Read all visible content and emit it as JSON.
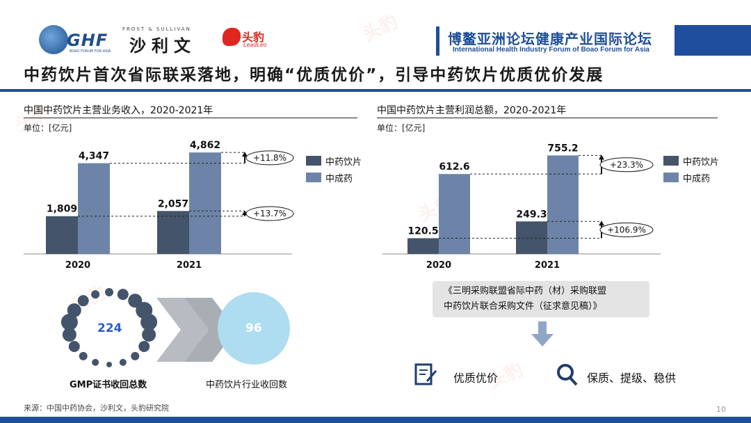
{
  "header": {
    "ghf_logo_text": "GHF",
    "ghf_logo_sub": "BOAO FORUM FOR ASIA",
    "frost_top": "FROST & SULLIVAN",
    "frost_cn": "沙利文",
    "leopard_cn": "头豹",
    "leopard_en": "LeadLeo",
    "forum_cn": "博鳌亚洲论坛健康产业国际论坛",
    "forum_en": "International Health Industry Forum of Boao Forum for Asia",
    "title": "中药饮片首次省际联采落地，明确“优质优价”，引导中药饮片优质优价发展"
  },
  "colors": {
    "dark_series": "#44546a",
    "light_series": "#6d84a8",
    "brand_blue": "#1f4e9c",
    "circle_blue": "#aedcf0"
  },
  "chart_data": [
    {
      "type": "bar",
      "title": "中国中药饮片主营业务收入，2020-2021年",
      "unit": "单位：[亿元]",
      "categories": [
        "2020",
        "2021"
      ],
      "series": [
        {
          "name": "中药饮片",
          "values": [
            1809,
            2057
          ],
          "labels": [
            "1,809",
            "2,057"
          ]
        },
        {
          "name": "中成药",
          "values": [
            4347,
            4862
          ],
          "labels": [
            "4,347",
            "4,862"
          ]
        }
      ],
      "ylim": [
        0,
        5000
      ],
      "annotations": [
        {
          "series": "中成药",
          "text": "+11.8%"
        },
        {
          "series": "中药饮片",
          "text": "+13.7%"
        }
      ],
      "legend": "right"
    },
    {
      "type": "bar",
      "title": "中国中药饮片主营利润总额，2020-2021年",
      "unit": "单位：[亿元]",
      "categories": [
        "2020",
        "2021"
      ],
      "series": [
        {
          "name": "中药饮片",
          "values": [
            120.5,
            249.3
          ],
          "labels": [
            "120.5",
            "249.3"
          ]
        },
        {
          "name": "中成药",
          "values": [
            612.6,
            755.2
          ],
          "labels": [
            "612.6",
            "755.2"
          ]
        }
      ],
      "ylim": [
        0,
        800
      ],
      "annotations": [
        {
          "series": "中成药",
          "text": "+23.3%"
        },
        {
          "series": "中药饮片",
          "text": "+106.9%"
        }
      ],
      "legend": "right"
    }
  ],
  "bottom": {
    "gmp_count": "224",
    "gmp_caption": "GMP证书收回总数",
    "industry_count": "96",
    "industry_caption": "中药饮片行业收回数",
    "doc_line1": "《三明采购联盟省际中药（材）采购联盟",
    "doc_line2": "中药饮片联合采购文件（征求意见稿）》",
    "tag1": "优质优价",
    "tag2": "保质、提级、稳供",
    "source": "来源：中国中药协会，沙利文，头豹研究院",
    "page_number": "10"
  }
}
